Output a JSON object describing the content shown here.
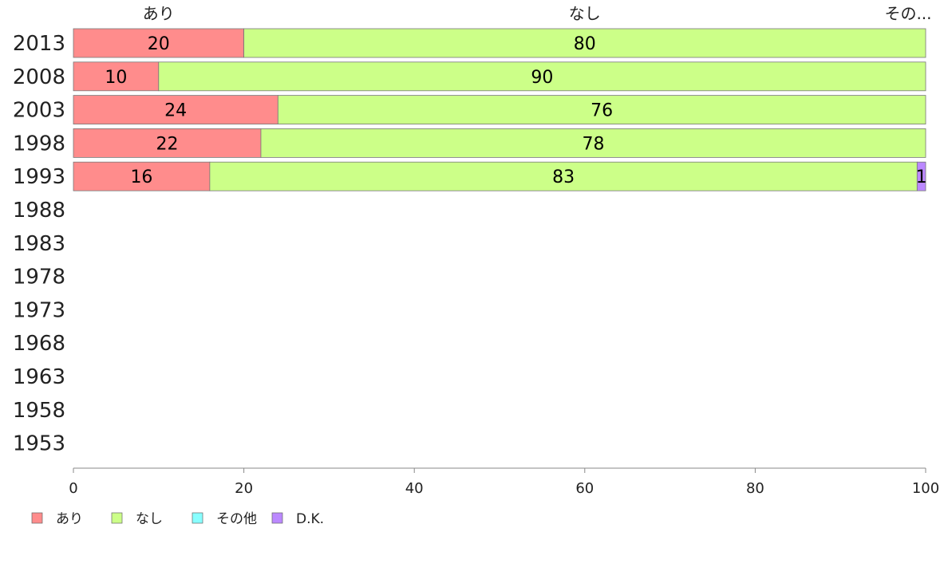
{
  "chart_data": {
    "type": "bar",
    "orientation": "horizontal",
    "stacked": true,
    "categories": [
      "2013",
      "2008",
      "2003",
      "1998",
      "1993",
      "1988",
      "1983",
      "1978",
      "1973",
      "1968",
      "1963",
      "1958",
      "1953"
    ],
    "series": [
      {
        "name": "あり",
        "color": "#ff8c8c",
        "values": [
          20,
          10,
          24,
          22,
          16,
          null,
          null,
          null,
          null,
          null,
          null,
          null,
          null
        ]
      },
      {
        "name": "なし",
        "color": "#ccff88",
        "values": [
          80,
          90,
          76,
          78,
          83,
          null,
          null,
          null,
          null,
          null,
          null,
          null,
          null
        ]
      },
      {
        "name": "その他",
        "color": "#88ffff",
        "values": [
          0,
          0,
          0,
          0,
          0,
          null,
          null,
          null,
          null,
          null,
          null,
          null,
          null
        ]
      },
      {
        "name": "D.K.",
        "color": "#bb88ff",
        "values": [
          0,
          0,
          0,
          0,
          1,
          null,
          null,
          null,
          null,
          null,
          null,
          null,
          null
        ]
      }
    ],
    "top_labels": [
      "あり",
      "なし",
      "その..."
    ],
    "xlim": [
      0,
      100
    ],
    "xticks": [
      0,
      20,
      40,
      60,
      80,
      100
    ],
    "legend_position": "bottom-left",
    "grid": false
  }
}
